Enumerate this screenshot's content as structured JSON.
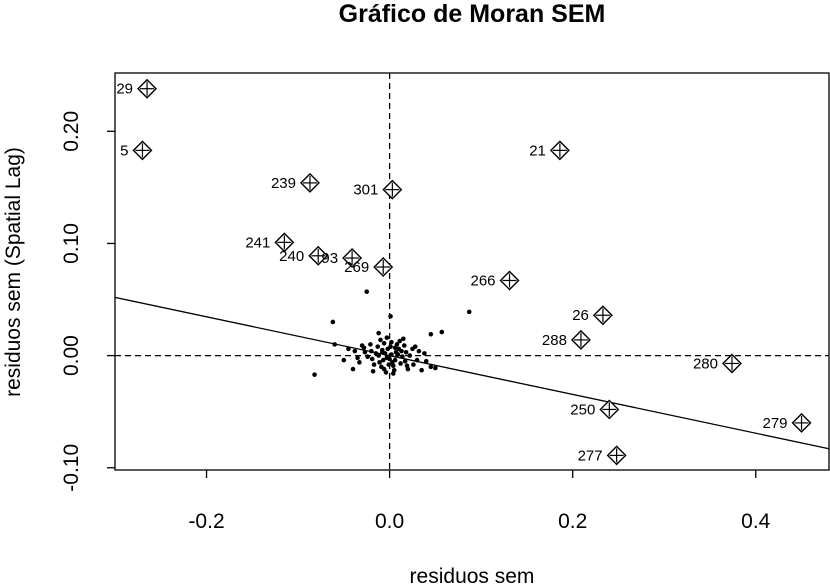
{
  "chart_data": {
    "type": "scatter",
    "title": "Gráfico de Moran SEM",
    "xlabel": "residuos sem",
    "ylabel": "residuos sem (Spatial Lag)",
    "xlim": [
      -0.3,
      0.48
    ],
    "ylim": [
      -0.102,
      0.252
    ],
    "x_ticks": [
      -0.2,
      0.0,
      0.2,
      0.4
    ],
    "x_tick_labels": [
      "-0.2",
      "0.0",
      "0.2",
      "0.4"
    ],
    "y_ticks": [
      -0.1,
      0.0,
      0.1,
      0.2
    ],
    "y_tick_labels": [
      "-0.10",
      "0.00",
      "0.10",
      "0.20"
    ],
    "regression_line": {
      "slope": -0.173,
      "intercept": 0.0
    },
    "reference_lines": {
      "x": 0.0,
      "y": 0.0
    },
    "influential_points": [
      {
        "id": "29",
        "x": -0.265,
        "y": 0.238
      },
      {
        "id": "5",
        "x": -0.27,
        "y": 0.183
      },
      {
        "id": "239",
        "x": -0.087,
        "y": 0.154
      },
      {
        "id": "301",
        "x": 0.003,
        "y": 0.148
      },
      {
        "id": "21",
        "x": 0.186,
        "y": 0.183
      },
      {
        "id": "241",
        "x": -0.115,
        "y": 0.101
      },
      {
        "id": "240",
        "x": -0.078,
        "y": 0.089
      },
      {
        "id": "93",
        "x": -0.041,
        "y": 0.087
      },
      {
        "id": "269",
        "x": -0.007,
        "y": 0.079
      },
      {
        "id": "266",
        "x": 0.131,
        "y": 0.067
      },
      {
        "id": "26",
        "x": 0.233,
        "y": 0.036
      },
      {
        "id": "288",
        "x": 0.209,
        "y": 0.014
      },
      {
        "id": "280",
        "x": 0.374,
        "y": -0.007
      },
      {
        "id": "250",
        "x": 0.24,
        "y": -0.048
      },
      {
        "id": "279",
        "x": 0.45,
        "y": -0.06
      },
      {
        "id": "277",
        "x": 0.248,
        "y": -0.089
      }
    ],
    "points": [
      [
        -0.025,
        0.057
      ],
      [
        0.087,
        0.039
      ],
      [
        -0.062,
        0.03
      ],
      [
        -0.082,
        -0.017
      ],
      [
        0.045,
        0.019
      ],
      [
        0.057,
        0.021
      ],
      [
        0.001,
        0.035
      ],
      [
        -0.06,
        0.01
      ],
      [
        -0.045,
        0.006
      ],
      [
        -0.05,
        -0.004
      ],
      [
        -0.04,
        -0.012
      ],
      [
        0.035,
        -0.013
      ],
      [
        0.045,
        -0.01
      ],
      [
        0.05,
        -0.011
      ],
      [
        -0.012,
        0.02
      ],
      [
        0.015,
        0.015
      ],
      [
        -0.03,
        0.009
      ],
      [
        0.028,
        0.008
      ],
      [
        0.02,
        -0.012
      ],
      [
        -0.018,
        -0.014
      ],
      [
        -0.008,
        0.005
      ],
      [
        0.006,
        -0.004
      ],
      [
        0.002,
        0.001
      ],
      [
        -0.003,
        -0.002
      ],
      [
        0.01,
        0.006
      ],
      [
        -0.011,
        -0.006
      ],
      [
        0.014,
        -0.001
      ],
      [
        -0.015,
        0.002
      ],
      [
        0.008,
        0.01
      ],
      [
        -0.006,
        0.011
      ],
      [
        0.004,
        -0.009
      ],
      [
        -0.009,
        -0.01
      ],
      [
        0.018,
        0.003
      ],
      [
        -0.02,
        0.004
      ],
      [
        0.012,
        -0.007
      ],
      [
        -0.013,
        0.008
      ],
      [
        0.001,
        0.008
      ],
      [
        -0.001,
        -0.008
      ],
      [
        0.022,
        0.0
      ],
      [
        -0.024,
        -0.001
      ],
      [
        0.007,
        0.003
      ],
      [
        -0.005,
        0.002
      ],
      [
        0.003,
        -0.006
      ],
      [
        -0.007,
        -0.004
      ],
      [
        0.016,
        0.009
      ],
      [
        -0.017,
        -0.008
      ],
      [
        0.025,
        0.006
      ],
      [
        -0.027,
        0.003
      ],
      [
        0.03,
        -0.004
      ],
      [
        -0.033,
        -0.006
      ],
      [
        0.011,
        0.013
      ],
      [
        -0.01,
        0.014
      ],
      [
        0.005,
        -0.013
      ],
      [
        -0.004,
        -0.015
      ],
      [
        0.019,
        -0.009
      ],
      [
        -0.021,
        0.01
      ],
      [
        0.009,
        0.001
      ],
      [
        -0.012,
        0.0
      ],
      [
        0.013,
        0.004
      ],
      [
        -0.002,
        0.006
      ],
      [
        0.0,
        -0.003
      ],
      [
        0.006,
        0.007
      ],
      [
        -0.008,
        0.003
      ],
      [
        0.017,
        -0.005
      ],
      [
        -0.019,
        -0.003
      ],
      [
        0.026,
        -0.008
      ],
      [
        -0.028,
        0.007
      ],
      [
        0.032,
        0.004
      ],
      [
        -0.035,
        -0.002
      ],
      [
        0.038,
        0.002
      ],
      [
        -0.038,
        0.004
      ],
      [
        0.04,
        -0.005
      ],
      [
        0.002,
        0.012
      ],
      [
        -0.003,
        0.016
      ],
      [
        0.004,
        -0.016
      ],
      [
        -0.006,
        -0.012
      ]
    ]
  }
}
